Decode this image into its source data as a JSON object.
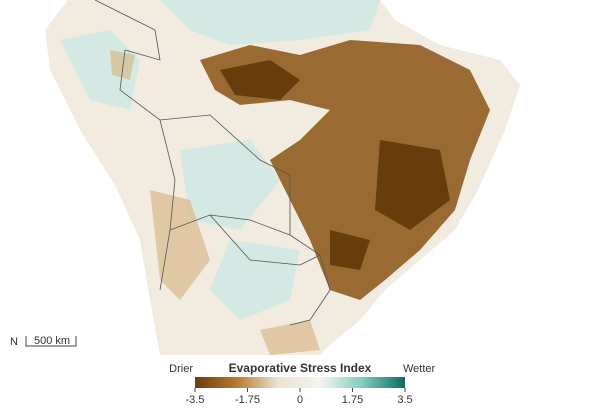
{
  "map": {
    "north": "N",
    "scale_bar": "500 km"
  },
  "legend": {
    "title": "Evaporative Stress Index",
    "low_label": "Drier",
    "high_label": "Wetter",
    "range": [
      -3.5,
      3.5
    ],
    "ticks": [
      -3.5,
      -1.75,
      0,
      1.75,
      3.5
    ],
    "colors": [
      "#6b3d08",
      "#b97a30",
      "#ece4d2",
      "#f4f4f1",
      "#7fcbbd",
      "#0c6b5d"
    ]
  }
}
